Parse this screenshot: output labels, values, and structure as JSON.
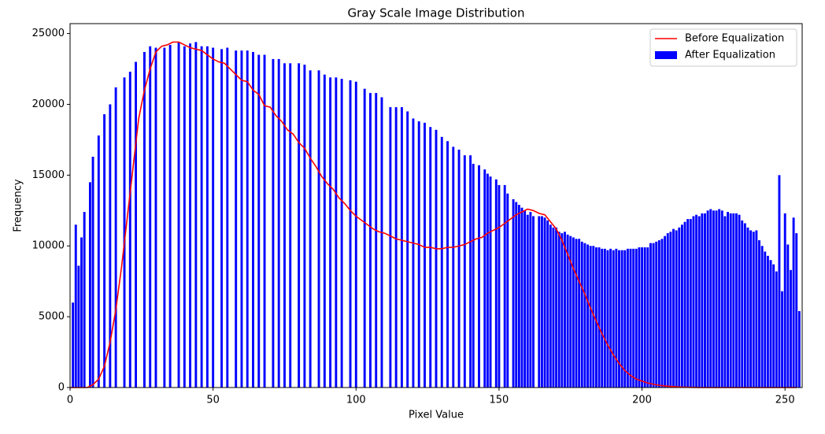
{
  "chart_data": {
    "type": "combo",
    "title": "Gray Scale Image Distribution",
    "x_label": "Pixel Value",
    "y_label": "Frequency",
    "xlim": [
      0,
      256
    ],
    "ylim": [
      0,
      25700
    ],
    "xticks": [
      0,
      50,
      100,
      150,
      200,
      250
    ],
    "yticks": [
      0,
      5000,
      10000,
      15000,
      20000,
      25000
    ],
    "legend": "upper right",
    "series": [
      {
        "name": "Before Equalization",
        "type": "line",
        "color": "#ff0000",
        "x": [
          0,
          2,
          4,
          6,
          8,
          10,
          12,
          14,
          16,
          18,
          20,
          22,
          24,
          26,
          28,
          30,
          32,
          34,
          36,
          38,
          40,
          42,
          44,
          46,
          48,
          50,
          52,
          54,
          56,
          58,
          60,
          62,
          64,
          66,
          68,
          70,
          72,
          74,
          76,
          78,
          80,
          82,
          84,
          86,
          88,
          90,
          92,
          94,
          96,
          98,
          100,
          102,
          104,
          106,
          108,
          110,
          112,
          114,
          116,
          118,
          120,
          122,
          124,
          126,
          128,
          130,
          132,
          134,
          136,
          138,
          140,
          142,
          144,
          146,
          148,
          150,
          152,
          154,
          156,
          158,
          160,
          162,
          164,
          166,
          168,
          170,
          172,
          174,
          176,
          178,
          180,
          182,
          184,
          186,
          188,
          190,
          192,
          194,
          196,
          198,
          200,
          202,
          204,
          206,
          208,
          210,
          212,
          214,
          216,
          218,
          220,
          222,
          224,
          226,
          228,
          230,
          232,
          234,
          236,
          238,
          240,
          242,
          244,
          246,
          248,
          250,
          252,
          254
        ],
        "values": [
          0,
          0,
          0,
          0,
          200,
          600,
          1500,
          3200,
          5500,
          8500,
          12000,
          15500,
          19000,
          21000,
          22500,
          23700,
          24100,
          24200,
          24400,
          24400,
          24200,
          24000,
          23900,
          23800,
          23500,
          23200,
          23000,
          22900,
          22500,
          22100,
          21700,
          21600,
          21000,
          20700,
          19900,
          19800,
          19200,
          18800,
          18200,
          17900,
          17300,
          16900,
          16200,
          15600,
          14900,
          14400,
          14000,
          13400,
          13000,
          12500,
          12100,
          11800,
          11500,
          11200,
          11000,
          10900,
          10700,
          10500,
          10400,
          10300,
          10200,
          10100,
          9900,
          9900,
          9800,
          9800,
          9900,
          9900,
          10000,
          10100,
          10300,
          10500,
          10600,
          10900,
          11100,
          11300,
          11600,
          11900,
          12200,
          12400,
          12600,
          12500,
          12300,
          12200,
          11700,
          11200,
          10400,
          9400,
          8400,
          7500,
          6600,
          5600,
          4700,
          3800,
          3000,
          2300,
          1700,
          1200,
          850,
          600,
          450,
          320,
          230,
          160,
          110,
          80,
          50,
          30,
          20,
          10,
          0,
          0,
          0,
          0,
          0,
          0,
          0,
          0,
          0,
          0,
          0,
          0,
          0,
          0,
          0,
          0,
          0,
          0
        ]
      },
      {
        "name": "After Equalization",
        "type": "bar",
        "color": "#0000ff",
        "x": [
          1,
          2,
          3,
          4,
          5,
          7,
          8,
          10,
          12,
          14,
          16,
          19,
          21,
          23,
          26,
          28,
          30,
          33,
          35,
          38,
          40,
          42,
          44,
          46,
          48,
          50,
          53,
          55,
          58,
          60,
          62,
          64,
          66,
          68,
          71,
          73,
          75,
          77,
          80,
          82,
          84,
          87,
          89,
          91,
          93,
          95,
          98,
          100,
          103,
          105,
          107,
          109,
          112,
          114,
          116,
          118,
          120,
          122,
          124,
          126,
          128,
          130,
          132,
          134,
          136,
          138,
          140,
          141,
          143,
          145,
          146,
          147,
          149,
          150,
          152,
          153,
          155,
          156,
          157,
          158,
          159,
          160,
          161,
          162,
          164,
          165,
          166,
          167,
          168,
          169,
          170,
          171,
          172,
          173,
          174,
          175,
          176,
          177,
          178,
          179,
          180,
          181,
          182,
          183,
          184,
          185,
          186,
          187,
          188,
          189,
          190,
          191,
          192,
          193,
          194,
          195,
          196,
          197,
          198,
          199,
          200,
          201,
          202,
          203,
          204,
          205,
          206,
          207,
          208,
          209,
          210,
          211,
          212,
          213,
          214,
          215,
          216,
          217,
          218,
          219,
          220,
          221,
          222,
          223,
          224,
          225,
          226,
          227,
          228,
          229,
          230,
          231,
          232,
          233,
          234,
          235,
          236,
          237,
          238,
          239,
          240,
          241,
          242,
          243,
          244,
          245,
          246,
          247,
          248,
          249,
          250,
          251,
          252,
          253,
          254,
          255
        ],
        "values": [
          6000,
          11500,
          8600,
          10600,
          12400,
          14500,
          16300,
          17800,
          19300,
          20000,
          21200,
          21900,
          22300,
          23000,
          23700,
          24100,
          24000,
          24000,
          24200,
          24400,
          24100,
          24300,
          24400,
          24100,
          24100,
          24000,
          23900,
          24000,
          23800,
          23800,
          23800,
          23700,
          23500,
          23500,
          23200,
          23200,
          22900,
          22900,
          22900,
          22800,
          22400,
          22400,
          22100,
          21900,
          21900,
          21800,
          21700,
          21600,
          21100,
          20800,
          20800,
          20500,
          19800,
          19800,
          19800,
          19500,
          19000,
          18800,
          18700,
          18400,
          18200,
          17700,
          17400,
          17000,
          16800,
          16400,
          16400,
          15800,
          15700,
          15400,
          15100,
          14900,
          14700,
          14300,
          14300,
          13700,
          13300,
          13100,
          12900,
          12700,
          12500,
          12200,
          12400,
          12100,
          12100,
          12100,
          12000,
          11800,
          11500,
          11300,
          11300,
          11000,
          10900,
          11000,
          10800,
          10700,
          10600,
          10500,
          10500,
          10300,
          10200,
          10100,
          10000,
          10000,
          9900,
          9900,
          9800,
          9800,
          9700,
          9800,
          9700,
          9800,
          9700,
          9700,
          9700,
          9800,
          9800,
          9800,
          9800,
          9900,
          9900,
          9900,
          9900,
          10200,
          10200,
          10300,
          10400,
          10500,
          10700,
          10900,
          11000,
          11200,
          11100,
          11300,
          11500,
          11700,
          11900,
          11900,
          12100,
          12200,
          12100,
          12300,
          12300,
          12500,
          12600,
          12500,
          12500,
          12600,
          12500,
          12100,
          12400,
          12300,
          12300,
          12300,
          12200,
          11800,
          11600,
          11300,
          11100,
          11000,
          11100,
          10400,
          10000,
          9600,
          9300,
          9000,
          8700,
          8200,
          15000,
          6800,
          12300,
          10100,
          8300,
          12000,
          10900,
          5400
        ]
      }
    ]
  }
}
